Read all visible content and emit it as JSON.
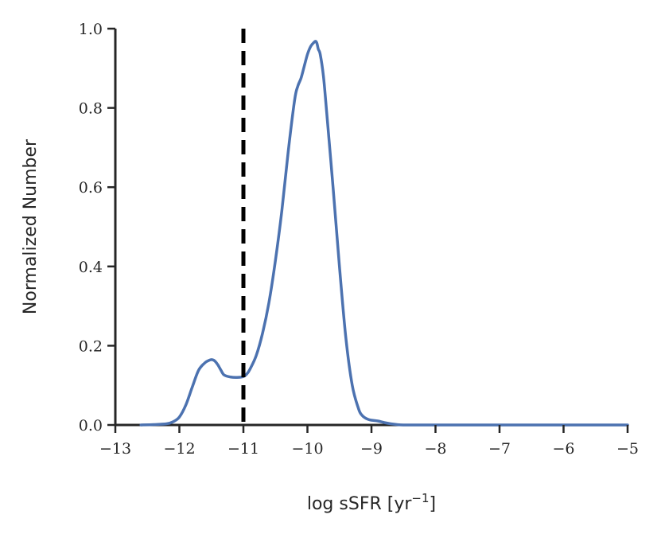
{
  "chart_data": {
    "type": "line",
    "title": "",
    "xlabel": "log sSFR [yr",
    "xlabel_sup": "−1",
    "xlabel_close": "]",
    "ylabel": "Normalized Number",
    "xlim": [
      -13,
      -5
    ],
    "ylim": [
      0,
      1.0
    ],
    "xticks": [
      -13,
      -12,
      -11,
      -10,
      -9,
      -8,
      -7,
      -6,
      -5
    ],
    "xtick_labels": [
      "−13",
      "−12",
      "−11",
      "−10",
      "−9",
      "−8",
      "−7",
      "−6",
      "−5"
    ],
    "yticks": [
      0.0,
      0.2,
      0.4,
      0.6,
      0.8,
      1.0
    ],
    "ytick_labels": [
      "0.0",
      "0.2",
      "0.4",
      "0.6",
      "0.8",
      "1.0"
    ],
    "grid": false,
    "series": [
      {
        "color": "#4c72b0",
        "x": [
          -12.6,
          -12.4,
          -12.2,
          -12.1,
          -12.0,
          -11.9,
          -11.8,
          -11.7,
          -11.6,
          -11.55,
          -11.5,
          -11.45,
          -11.4,
          -11.35,
          -11.3,
          -11.2,
          -11.1,
          -11.0,
          -10.95,
          -10.9,
          -10.8,
          -10.7,
          -10.6,
          -10.5,
          -10.4,
          -10.3,
          -10.2,
          -10.15,
          -10.1,
          -10.05,
          -10.0,
          -9.95,
          -9.9,
          -9.87,
          -9.85,
          -9.83,
          -9.8,
          -9.75,
          -9.7,
          -9.6,
          -9.5,
          -9.4,
          -9.3,
          -9.2,
          -9.15,
          -9.1,
          -9.05,
          -9.0,
          -8.9,
          -8.8,
          -8.7,
          -8.6,
          -8.5,
          -8.3,
          -8.0,
          -7.5,
          -7.0,
          -6.5,
          -6.0,
          -5.5,
          -5.0
        ],
        "values": [
          0.0,
          0.001,
          0.003,
          0.008,
          0.02,
          0.05,
          0.095,
          0.138,
          0.157,
          0.162,
          0.165,
          0.162,
          0.152,
          0.138,
          0.126,
          0.121,
          0.12,
          0.122,
          0.128,
          0.14,
          0.175,
          0.232,
          0.31,
          0.415,
          0.54,
          0.69,
          0.82,
          0.855,
          0.875,
          0.905,
          0.935,
          0.955,
          0.965,
          0.968,
          0.962,
          0.948,
          0.935,
          0.88,
          0.79,
          0.6,
          0.4,
          0.22,
          0.1,
          0.04,
          0.025,
          0.018,
          0.014,
          0.012,
          0.01,
          0.006,
          0.003,
          0.001,
          0.0,
          0.0,
          0.0,
          0.0,
          0.0,
          0.0,
          0.0,
          0.0,
          0.0
        ]
      }
    ],
    "annotations": [
      {
        "type": "vline",
        "x": -11.0,
        "style": "dashed",
        "color": "#000000"
      }
    ]
  }
}
